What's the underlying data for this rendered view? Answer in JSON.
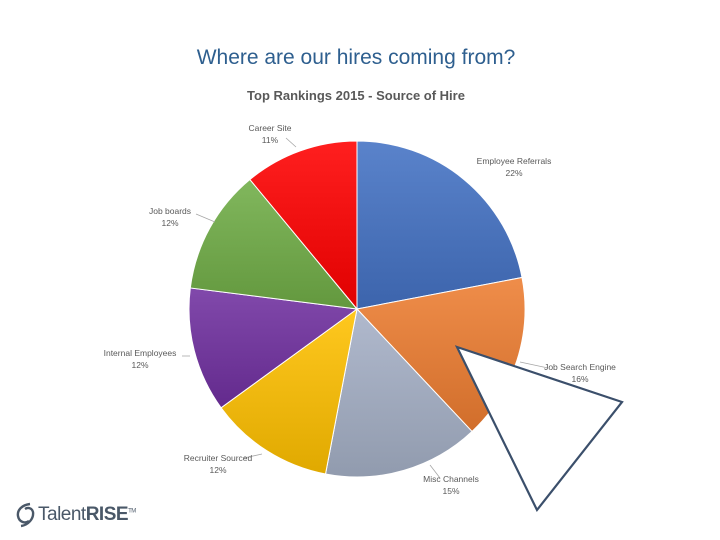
{
  "slide": {
    "title": "Where are our hires coming from?"
  },
  "logo": {
    "text": "TalentRISE",
    "text_plain": "Talent",
    "text_bold": "RISE",
    "symbol": "TM"
  },
  "colors": {
    "title": "#2e5f8f",
    "pointer_outline": "#3b4f6b"
  },
  "chart_data": {
    "type": "pie",
    "title": "Top Rankings 2015 - Source of Hire",
    "start_angle_deg": 0,
    "direction": "clockwise",
    "slices": [
      {
        "label": "Employee Referrals",
        "value": 22,
        "pct_text": "22%",
        "color": "#4472c4"
      },
      {
        "label": "Job Search Engine",
        "value": 16,
        "pct_text": "16%",
        "color": "#ed7d31"
      },
      {
        "label": "Misc Channels",
        "value": 15,
        "pct_text": "15%",
        "color": "#a5b0c6"
      },
      {
        "label": "Recruiter Sourced",
        "value": 12,
        "pct_text": "12%",
        "color": "#ffc000"
      },
      {
        "label": "Internal Employees",
        "value": 12,
        "pct_text": "12%",
        "color": "#7030a0"
      },
      {
        "label": "Job boards",
        "value": 12,
        "pct_text": "12%",
        "color": "#70ad47"
      },
      {
        "label": "Career Site",
        "value": 11,
        "pct_text": "11%",
        "color": "#ff0000"
      }
    ]
  }
}
